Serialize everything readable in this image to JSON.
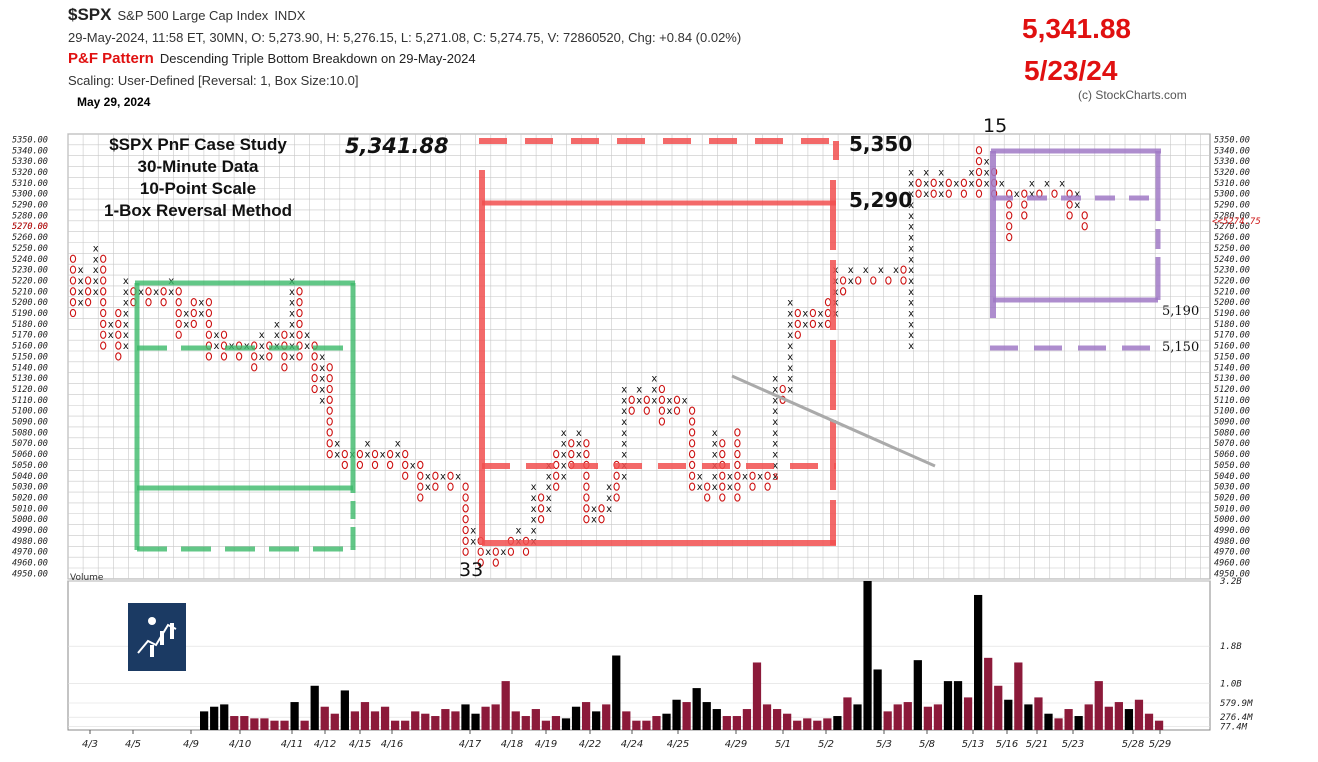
{
  "header": {
    "ticker": "$SPX",
    "name": "S&P 500 Large Cap Index",
    "exchange": "INDX",
    "quote": "29-May-2024, 11:58 ET, 30MN, O: 5,273.90, H: 5,276.15, L: 5,271.08, C: 5,274.75, V: 72860520, Chg: +0.84 (0.02%)",
    "pattern_label": "P&F Pattern",
    "pattern_text": "Descending Triple Bottom Breakdown on 29-May-2024",
    "scaling": "Scaling: User-Defined [Reversal: 1, Box Size:10.0]",
    "date": "May 29, 2024",
    "copyright": "(c) StockCharts.com"
  },
  "annotations": {
    "big_price": "5,341.88",
    "big_date": "5/23/24",
    "study_lines": [
      "$SPX  PnF Case Study",
      "30-Minute Data",
      "10-Point Scale",
      "1-Box Reversal Method"
    ],
    "price_5341": "5,341.88",
    "label_5350": "5,350",
    "label_5290": "5,290",
    "label_5190": "5,190",
    "label_5150": "5,150",
    "count_15": "15",
    "count_33": "33",
    "col_marker": "5",
    "last_price_tag": "<<5274.75",
    "last_price_axis": "5270.00"
  },
  "colors": {
    "x_mark": "#111111",
    "o_mark": "#cc1111",
    "green_box": "#3cba6a",
    "red_box": "#f25050",
    "purple_box": "#a07ac6",
    "vol_up": "#000000",
    "vol_down": "#8c1a3a"
  },
  "chart_data": [
    {
      "type": "point-and-figure",
      "box_size": 10,
      "reversal": 1,
      "ylim": [
        4950,
        5350
      ],
      "columns": [
        {
          "type": "O",
          "high": 5240,
          "low": 5190
        },
        {
          "type": "X",
          "high": 5230,
          "low": 5200
        },
        {
          "type": "O",
          "high": 5220,
          "low": 5200
        },
        {
          "type": "X",
          "high": 5250,
          "low": 5210
        },
        {
          "type": "O",
          "high": 5240,
          "low": 5160
        },
        {
          "type": "X",
          "high": 5180,
          "low": 5170
        },
        {
          "type": "O",
          "high": 5190,
          "low": 5150
        },
        {
          "type": "X",
          "high": 5220,
          "low": 5160
        },
        {
          "type": "O",
          "high": 5210,
          "low": 5200
        },
        {
          "type": "X",
          "high": 5210,
          "low": 5210
        },
        {
          "type": "O",
          "high": 5210,
          "low": 5200
        },
        {
          "type": "X",
          "high": 5210,
          "low": 5210
        },
        {
          "type": "O",
          "high": 5210,
          "low": 5200
        },
        {
          "type": "X",
          "high": 5220,
          "low": 5210
        },
        {
          "type": "O",
          "high": 5210,
          "low": 5170
        },
        {
          "type": "X",
          "high": 5190,
          "low": 5180
        },
        {
          "type": "O",
          "high": 5200,
          "low": 5180
        },
        {
          "type": "X",
          "high": 5200,
          "low": 5190
        },
        {
          "type": "O",
          "high": 5200,
          "low": 5150
        },
        {
          "type": "X",
          "high": 5170,
          "low": 5160
        },
        {
          "type": "O",
          "high": 5170,
          "low": 5150
        },
        {
          "type": "X",
          "high": 5160,
          "low": 5160
        },
        {
          "type": "O",
          "high": 5160,
          "low": 5150
        },
        {
          "type": "X",
          "high": 5160,
          "low": 5160
        },
        {
          "type": "O",
          "high": 5160,
          "low": 5140
        },
        {
          "type": "X",
          "high": 5170,
          "low": 5150
        },
        {
          "type": "O",
          "high": 5160,
          "low": 5150
        },
        {
          "type": "X",
          "high": 5180,
          "low": 5160
        },
        {
          "type": "O",
          "high": 5170,
          "low": 5140
        },
        {
          "type": "X",
          "high": 5220,
          "low": 5150
        },
        {
          "type": "O",
          "high": 5210,
          "low": 5150
        },
        {
          "type": "X",
          "high": 5170,
          "low": 5160
        },
        {
          "type": "O",
          "high": 5160,
          "low": 5120
        },
        {
          "type": "X",
          "high": 5150,
          "low": 5110
        },
        {
          "type": "O",
          "high": 5140,
          "low": 5060
        },
        {
          "type": "X",
          "high": 5070,
          "low": 5060
        },
        {
          "type": "O",
          "high": 5060,
          "low": 5050
        },
        {
          "type": "X",
          "high": 5060,
          "low": 5060
        },
        {
          "type": "O",
          "high": 5060,
          "low": 5050
        },
        {
          "type": "X",
          "high": 5070,
          "low": 5060
        },
        {
          "type": "O",
          "high": 5060,
          "low": 5050
        },
        {
          "type": "X",
          "high": 5060,
          "low": 5060
        },
        {
          "type": "O",
          "high": 5060,
          "low": 5050
        },
        {
          "type": "X",
          "high": 5070,
          "low": 5060
        },
        {
          "type": "O",
          "high": 5060,
          "low": 5040
        },
        {
          "type": "X",
          "high": 5050,
          "low": 5050
        },
        {
          "type": "O",
          "high": 5050,
          "low": 5020
        },
        {
          "type": "X",
          "high": 5040,
          "low": 5030
        },
        {
          "type": "O",
          "high": 5040,
          "low": 5030
        },
        {
          "type": "X",
          "high": 5040,
          "low": 5040
        },
        {
          "type": "O",
          "high": 5040,
          "low": 5030
        },
        {
          "type": "X",
          "high": 5040,
          "low": 5040
        },
        {
          "type": "O",
          "high": 5030,
          "low": 4970
        },
        {
          "type": "X",
          "high": 4990,
          "low": 4980
        },
        {
          "type": "O",
          "high": 4980,
          "low": 4960
        },
        {
          "type": "X",
          "high": 4970,
          "low": 4970
        },
        {
          "type": "O",
          "high": 4970,
          "low": 4960
        },
        {
          "type": "X",
          "high": 4970,
          "low": 4970
        },
        {
          "type": "O",
          "high": 4980,
          "low": 4970
        },
        {
          "type": "X",
          "high": 4990,
          "low": 4980
        },
        {
          "type": "O",
          "high": 4980,
          "low": 4970
        },
        {
          "type": "X",
          "high": 5030,
          "low": 4980
        },
        {
          "type": "O",
          "high": 5020,
          "low": 5000
        },
        {
          "type": "X",
          "high": 5050,
          "low": 5010
        },
        {
          "type": "O",
          "high": 5060,
          "low": 5030
        },
        {
          "type": "X",
          "high": 5080,
          "low": 5040
        },
        {
          "type": "O",
          "high": 5070,
          "low": 5050
        },
        {
          "type": "X",
          "high": 5080,
          "low": 5060
        },
        {
          "type": "O",
          "high": 5070,
          "low": 5000
        },
        {
          "type": "X",
          "high": 5010,
          "low": 5000
        },
        {
          "type": "O",
          "high": 5010,
          "low": 5000
        },
        {
          "type": "X",
          "high": 5030,
          "low": 5010
        },
        {
          "type": "O",
          "high": 5050,
          "low": 5020
        },
        {
          "type": "X",
          "high": 5120,
          "low": 5040
        },
        {
          "type": "O",
          "high": 5110,
          "low": 5100
        },
        {
          "type": "X",
          "high": 5120,
          "low": 5110
        },
        {
          "type": "O",
          "high": 5110,
          "low": 5100
        },
        {
          "type": "X",
          "high": 5130,
          "low": 5110
        },
        {
          "type": "O",
          "high": 5120,
          "low": 5090
        },
        {
          "type": "X",
          "high": 5110,
          "low": 5100
        },
        {
          "type": "O",
          "high": 5110,
          "low": 5100
        },
        {
          "type": "X",
          "high": 5110,
          "low": 5110
        },
        {
          "type": "O",
          "high": 5100,
          "low": 5030
        },
        {
          "type": "X",
          "high": 5040,
          "low": 5030
        },
        {
          "type": "O",
          "high": 5030,
          "low": 5020
        },
        {
          "type": "X",
          "high": 5080,
          "low": 5030
        },
        {
          "type": "O",
          "high": 5070,
          "low": 5020
        },
        {
          "type": "X",
          "high": 5040,
          "low": 5030
        },
        {
          "type": "O",
          "high": 5080,
          "low": 5020
        },
        {
          "type": "X",
          "high": 5040,
          "low": 5040
        },
        {
          "type": "O",
          "high": 5040,
          "low": 5030
        },
        {
          "type": "X",
          "high": 5040,
          "low": 5040
        },
        {
          "type": "O",
          "high": 5040,
          "low": 5030
        },
        {
          "type": "X",
          "high": 5130,
          "low": 5040
        },
        {
          "type": "O",
          "high": 5120,
          "low": 5110
        },
        {
          "type": "X",
          "high": 5200,
          "low": 5120
        },
        {
          "type": "O",
          "high": 5190,
          "low": 5170
        },
        {
          "type": "X",
          "high": 5190,
          "low": 5180
        },
        {
          "type": "O",
          "high": 5190,
          "low": 5180
        },
        {
          "type": "X",
          "high": 5190,
          "low": 5180
        },
        {
          "type": "O",
          "high": 5200,
          "low": 5180
        },
        {
          "type": "X",
          "high": 5230,
          "low": 5190
        },
        {
          "type": "O",
          "high": 5220,
          "low": 5210
        },
        {
          "type": "X",
          "high": 5230,
          "low": 5220
        },
        {
          "type": "O",
          "high": 5220,
          "low": 5220
        },
        {
          "type": "X",
          "high": 5230,
          "low": 5230
        },
        {
          "type": "O",
          "high": 5220,
          "low": 5220
        },
        {
          "type": "X",
          "high": 5230,
          "low": 5230
        },
        {
          "type": "O",
          "high": 5220,
          "low": 5220
        },
        {
          "type": "X",
          "high": 5230,
          "low": 5230
        },
        {
          "type": "O",
          "high": 5230,
          "low": 5220
        },
        {
          "type": "X",
          "high": 5320,
          "low": 5160
        },
        {
          "type": "O",
          "high": 5310,
          "low": 5300
        },
        {
          "type": "X",
          "high": 5320,
          "low": 5300
        },
        {
          "type": "O",
          "high": 5310,
          "low": 5300
        },
        {
          "type": "X",
          "high": 5320,
          "low": 5300
        },
        {
          "type": "O",
          "high": 5310,
          "low": 5300
        },
        {
          "type": "X",
          "high": 5310,
          "low": 5310
        },
        {
          "type": "O",
          "high": 5310,
          "low": 5300
        },
        {
          "type": "X",
          "high": 5320,
          "low": 5310
        },
        {
          "type": "O",
          "high": 5340,
          "low": 5300
        },
        {
          "type": "X",
          "high": 5330,
          "low": 5310
        },
        {
          "type": "O",
          "high": 5320,
          "low": 5300
        },
        {
          "type": "X",
          "high": 5310,
          "low": 5310
        },
        {
          "type": "O",
          "high": 5300,
          "low": 5260
        },
        {
          "type": "X",
          "high": 5300,
          "low": 5300
        },
        {
          "type": "O",
          "high": 5300,
          "low": 5280
        },
        {
          "type": "X",
          "high": 5310,
          "low": 5300
        },
        {
          "type": "O",
          "high": 5300,
          "low": 5300
        },
        {
          "type": "X",
          "high": 5310,
          "low": 5310
        },
        {
          "type": "O",
          "high": 5300,
          "low": 5300
        },
        {
          "type": "X",
          "high": 5310,
          "low": 5310
        },
        {
          "type": "O",
          "high": 5300,
          "low": 5280
        },
        {
          "type": "X",
          "high": 5300,
          "low": 5290
        },
        {
          "type": "O",
          "high": 5280,
          "low": 5270
        }
      ],
      "y_ticks": [
        5350,
        5340,
        5330,
        5320,
        5310,
        5300,
        5290,
        5280,
        5270,
        5260,
        5250,
        5240,
        5230,
        5220,
        5210,
        5200,
        5190,
        5180,
        5170,
        5160,
        5150,
        5140,
        5130,
        5120,
        5110,
        5100,
        5090,
        5080,
        5070,
        5060,
        5050,
        5040,
        5030,
        5020,
        5010,
        5000,
        4990,
        4980,
        4970,
        4960,
        4950
      ]
    },
    {
      "type": "bar",
      "title": "Volume",
      "ylim": [
        0,
        3.2
      ],
      "y_tick_labels": [
        "3.2B",
        "1.8B",
        "1.0B",
        "579.9M",
        "276.4M",
        "77.4M"
      ],
      "y_tick_values": [
        3.2,
        1.8,
        1.0,
        0.58,
        0.276,
        0.077
      ],
      "x_labels": [
        "4/3",
        "4/5",
        "4/9",
        "4/10",
        "4/11",
        "4/12",
        "4/15",
        "4/16",
        "4/17",
        "4/18",
        "4/19",
        "4/22",
        "4/24",
        "4/25",
        "4/29",
        "5/1",
        "5/2",
        "5/3",
        "5/8",
        "5/13",
        "5/16",
        "5/21",
        "5/23",
        "5/28",
        "5/29"
      ],
      "values": [
        0.4,
        0.5,
        0.55,
        0.3,
        0.3,
        0.25,
        0.25,
        0.2,
        0.2,
        0.6,
        0.2,
        0.95,
        0.5,
        0.35,
        0.85,
        0.4,
        0.6,
        0.4,
        0.5,
        0.2,
        0.2,
        0.4,
        0.35,
        0.3,
        0.45,
        0.4,
        0.55,
        0.35,
        0.5,
        0.55,
        1.05,
        0.4,
        0.3,
        0.45,
        0.2,
        0.3,
        0.25,
        0.5,
        0.6,
        0.4,
        0.55,
        1.6,
        0.4,
        0.2,
        0.2,
        0.3,
        0.35,
        0.65,
        0.6,
        0.9,
        0.6,
        0.45,
        0.3,
        0.3,
        0.45,
        1.45,
        0.55,
        0.45,
        0.35,
        0.2,
        0.25,
        0.2,
        0.25,
        0.3,
        0.7,
        0.55,
        3.2,
        1.3,
        0.4,
        0.55,
        0.6,
        1.5,
        0.5,
        0.55,
        1.05,
        1.05,
        0.7,
        2.9,
        1.55,
        0.95,
        0.65,
        1.45,
        0.55,
        0.7,
        0.35,
        0.25,
        0.45,
        0.3,
        0.55,
        1.05,
        0.5,
        0.6,
        0.45,
        0.65,
        0.35,
        0.2
      ],
      "colors_index": [
        0,
        0,
        0,
        1,
        1,
        1,
        1,
        1,
        1,
        0,
        1,
        0,
        1,
        1,
        0,
        1,
        1,
        1,
        1,
        1,
        1,
        1,
        1,
        1,
        1,
        1,
        0,
        0,
        1,
        1,
        1,
        1,
        1,
        1,
        1,
        1,
        0,
        0,
        1,
        0,
        1,
        0,
        1,
        1,
        1,
        1,
        0,
        0,
        1,
        0,
        0,
        0,
        1,
        1,
        1,
        1,
        1,
        1,
        1,
        1,
        1,
        1,
        1,
        0,
        1,
        0,
        0,
        0,
        1,
        1,
        1,
        0,
        1,
        1,
        0,
        0,
        1,
        0,
        1,
        1,
        0,
        1,
        0,
        1,
        0,
        1,
        1,
        0,
        1,
        1,
        1,
        1,
        0,
        1,
        1,
        1
      ]
    }
  ]
}
